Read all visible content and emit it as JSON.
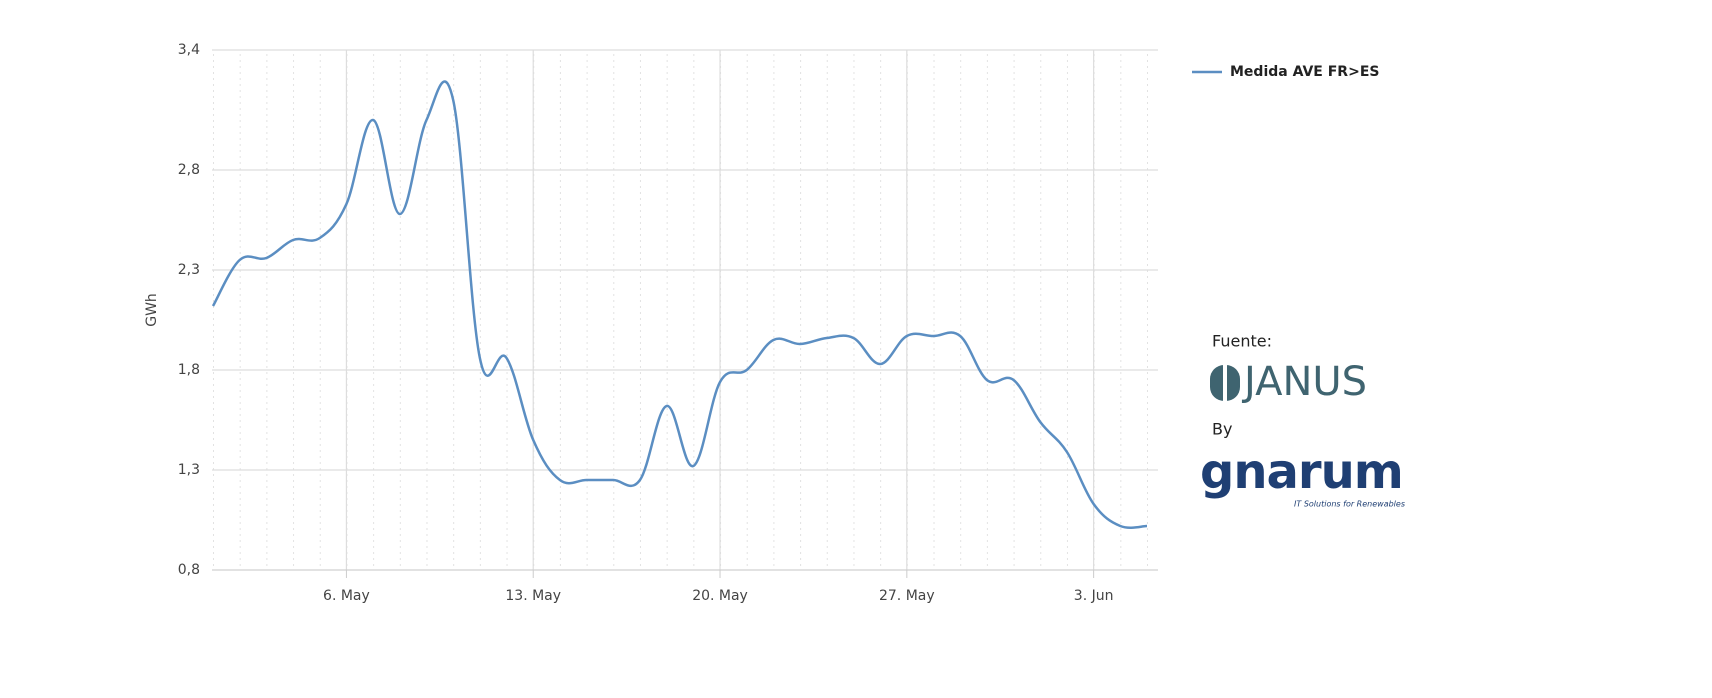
{
  "chart_data": {
    "type": "line",
    "y_label": "GWh",
    "categories": [
      null,
      null,
      null,
      null,
      null,
      "6. May",
      null,
      null,
      null,
      null,
      null,
      null,
      "13. May",
      null,
      null,
      null,
      null,
      null,
      null,
      "20. May",
      null,
      null,
      null,
      null,
      null,
      null,
      "27. May",
      null,
      null,
      null,
      null,
      null,
      null,
      "3. Jun",
      null,
      null
    ],
    "series": [
      {
        "name": "Medida AVE FR>ES",
        "color": "#5b8ec2",
        "values": [
          2.12,
          2.35,
          2.36,
          2.45,
          2.46,
          2.63,
          3.05,
          2.58,
          3.05,
          3.15,
          1.86,
          1.86,
          1.45,
          1.25,
          1.25,
          1.25,
          1.25,
          1.62,
          1.32,
          1.74,
          1.8,
          1.95,
          1.93,
          1.96,
          1.96,
          1.83,
          1.97,
          1.97,
          1.97,
          1.75,
          1.75,
          1.54,
          1.39,
          1.13,
          1.02,
          1.02
        ]
      }
    ],
    "ylim": [
      0.8,
      3.4
    ],
    "yticks": [
      {
        "value": 0.8,
        "label": "0,8"
      },
      {
        "value": 1.3,
        "label": "1,3"
      },
      {
        "value": 1.8,
        "label": "1,8"
      },
      {
        "value": 2.3,
        "label": "2,3"
      },
      {
        "value": 2.8,
        "label": "2,8"
      },
      {
        "value": 3.4,
        "label": "3,4"
      }
    ],
    "grid": true,
    "legend": "top-right",
    "annotations": [
      "Fuente:",
      "JANUS",
      "By",
      "gnarum",
      "IT Solutions for Renewables"
    ]
  }
}
